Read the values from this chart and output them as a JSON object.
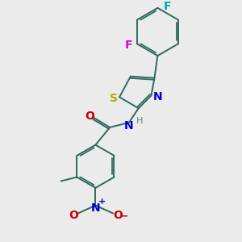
{
  "background_color": "#ebebeb",
  "bond_color": "#2d6b5e",
  "bond_lw": 1.4,
  "fig_width": 3.0,
  "fig_height": 3.0,
  "dpi": 100,
  "colors": {
    "S": "#b8a800",
    "N": "#0000cc",
    "O": "#cc0000",
    "F1": "#dd00dd",
    "F2": "#00aaaa",
    "H": "#558888",
    "C": "#2d6b5e"
  }
}
